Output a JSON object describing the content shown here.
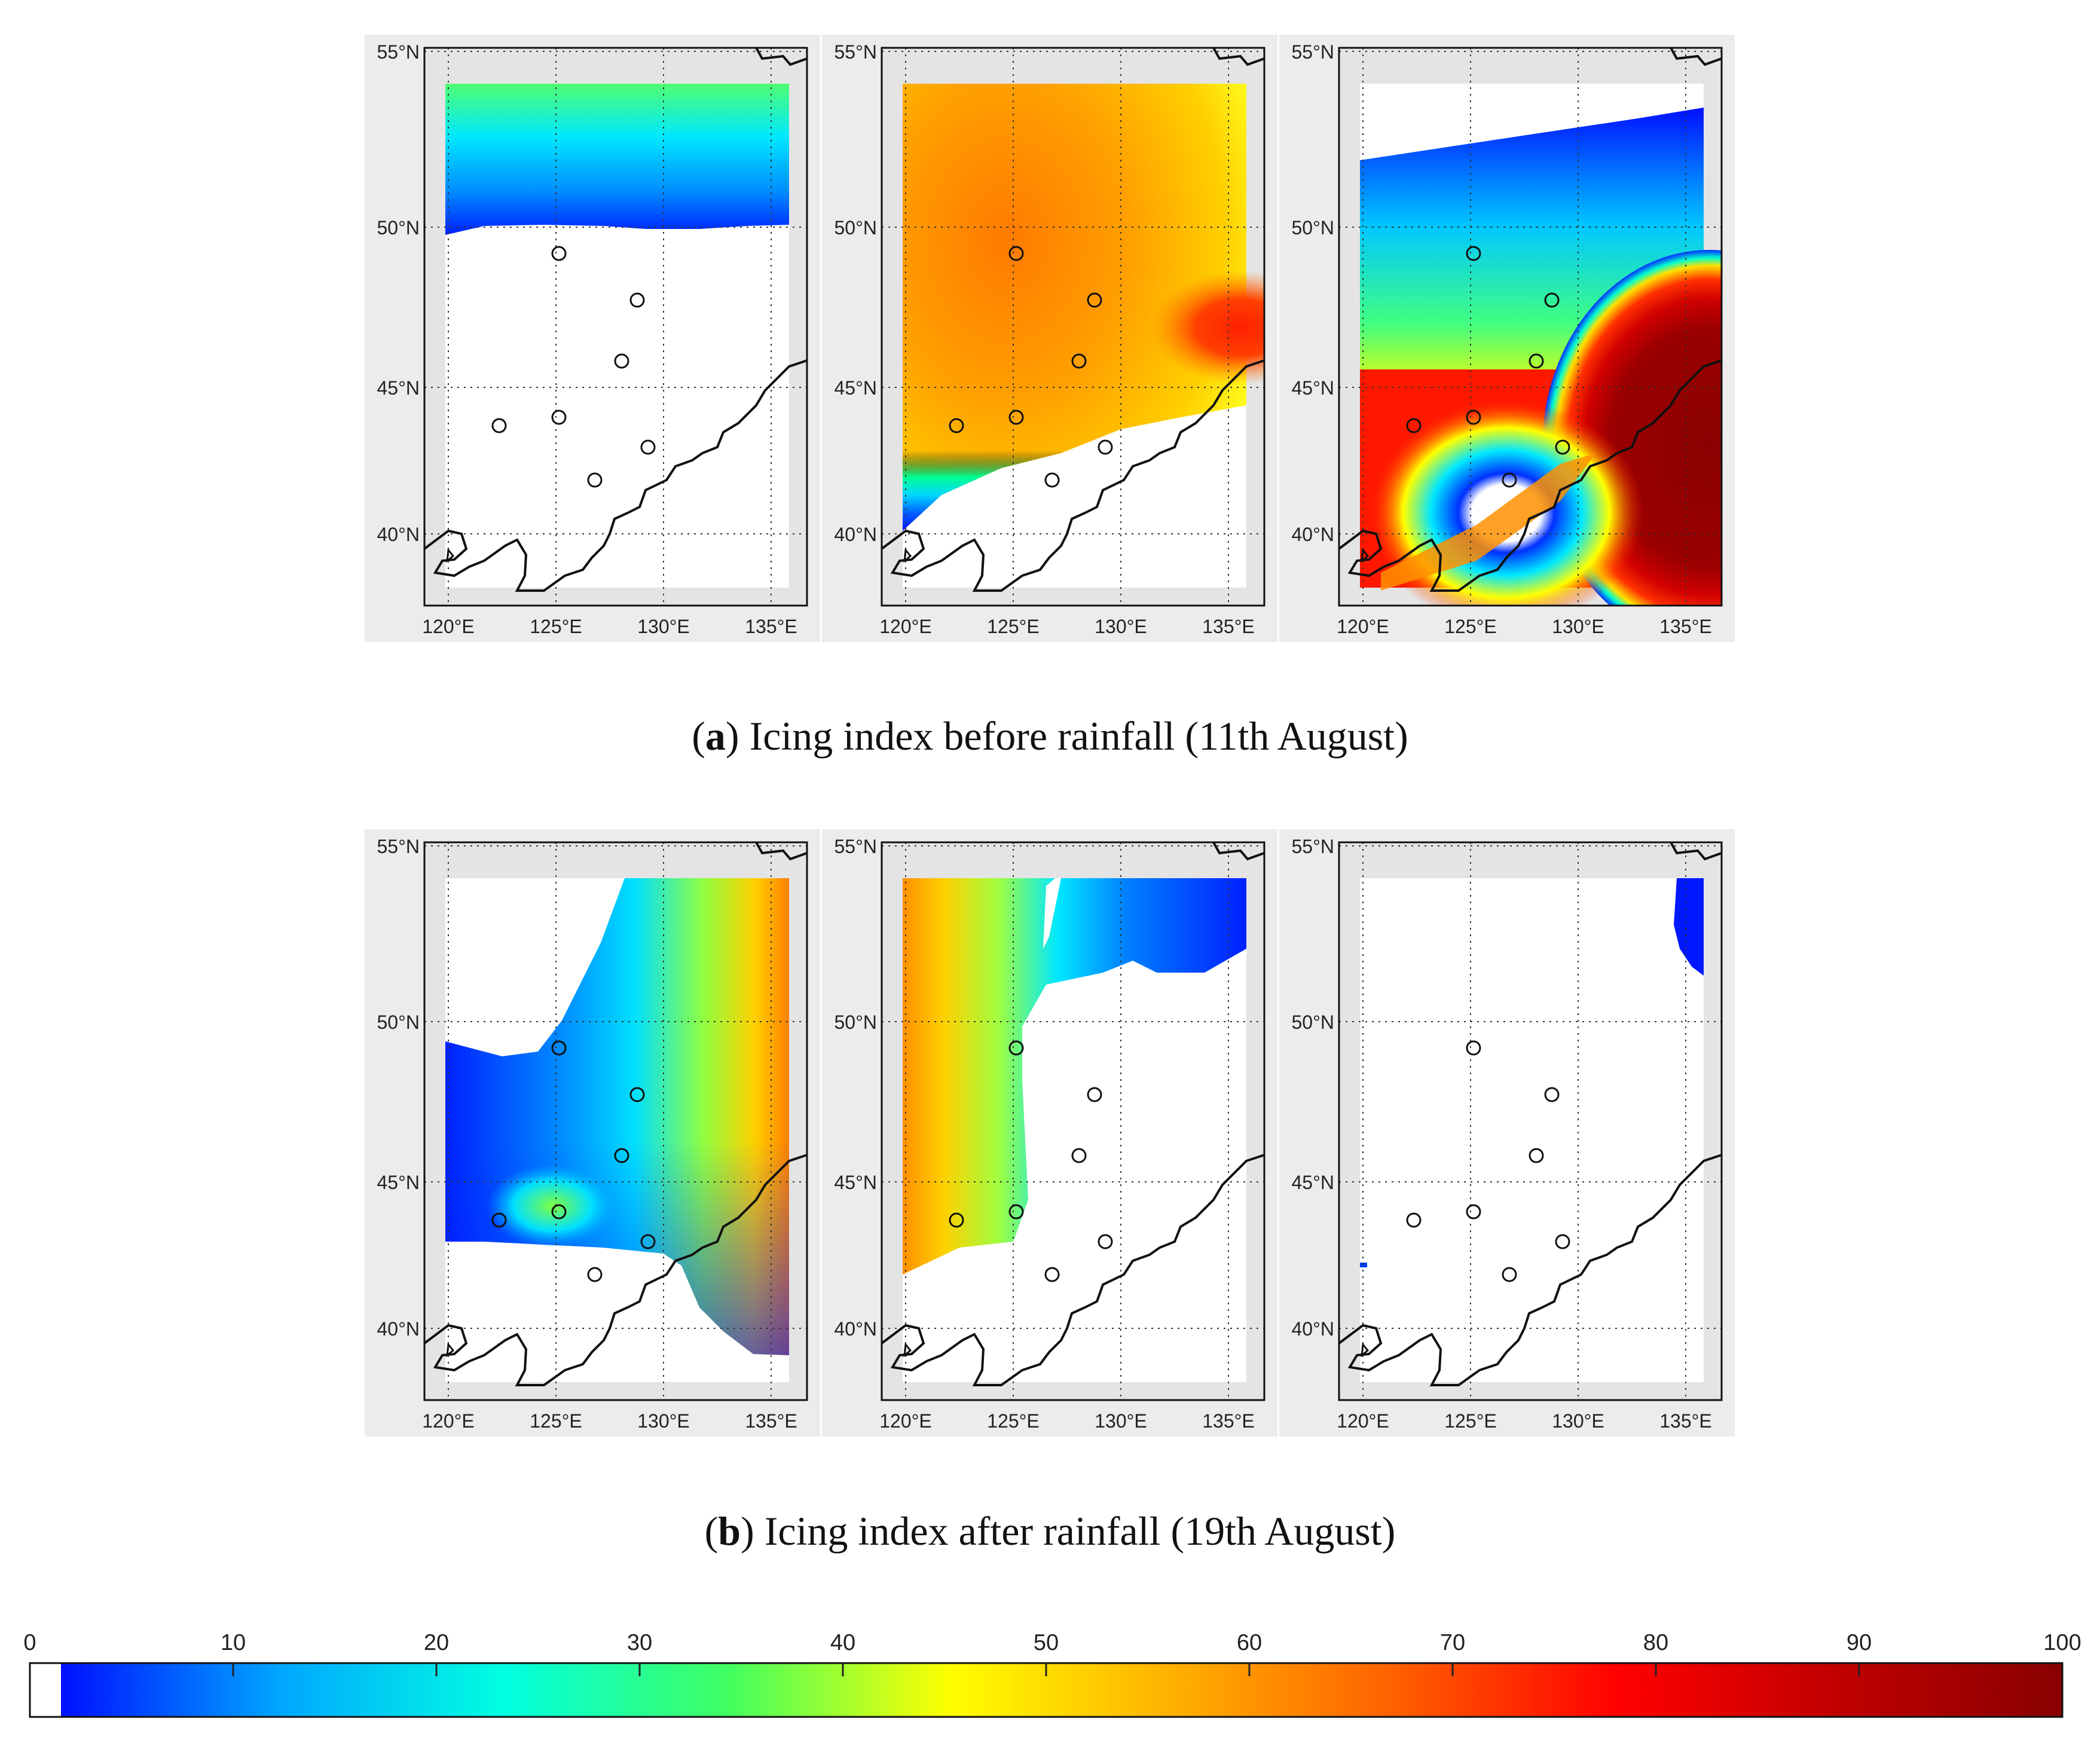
{
  "figure": {
    "panels_a": [
      {
        "title": "",
        "field": "a1"
      },
      {
        "title": "",
        "field": "a2"
      },
      {
        "title": "",
        "field": "a3"
      }
    ],
    "panels_b": [
      {
        "title": "",
        "field": "b1"
      },
      {
        "title": "",
        "field": "b2"
      },
      {
        "title": "",
        "field": "b3"
      }
    ],
    "lat_ticks": [
      "55°N",
      "50°N",
      "45°N",
      "40°N"
    ],
    "lon_ticks": [
      "120°E",
      "125°E",
      "130°E",
      "135°E"
    ],
    "caption_a": {
      "letter": "a",
      "text": "Icing index before rainfall (11th August)"
    },
    "caption_b": {
      "letter": "b",
      "text": "Icing index after rainfall (19th August)"
    },
    "colorbar": {
      "ticks": [
        "0",
        "10",
        "20",
        "30",
        "40",
        "50",
        "60",
        "70",
        "80",
        "90",
        "100"
      ],
      "colors": [
        "#0010ff",
        "#00a8ff",
        "#00ffe0",
        "#40ff60",
        "#ffff00",
        "#ffb000",
        "#ff6000",
        "#ff0000",
        "#c00000",
        "#880000"
      ]
    },
    "stations": 7
  }
}
